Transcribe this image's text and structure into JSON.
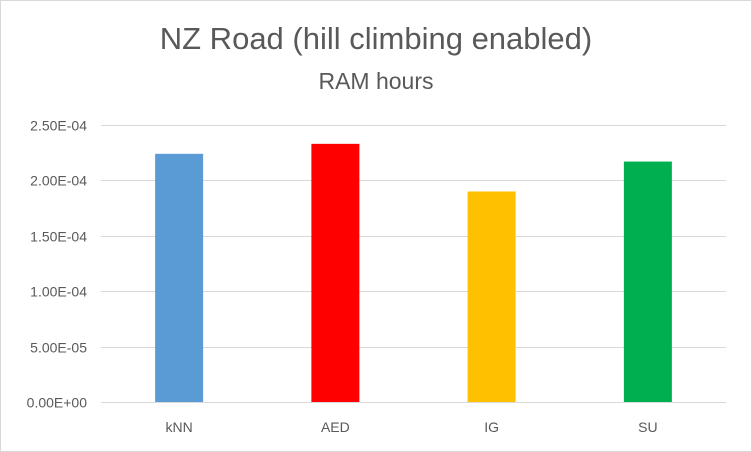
{
  "chart_data": {
    "type": "bar",
    "title": "NZ Road (hill climbing enabled)",
    "subtitle": "RAM hours",
    "xlabel": "",
    "ylabel": "",
    "categories": [
      "kNN",
      "AED",
      "IG",
      "SU"
    ],
    "values": [
      0.000224,
      0.000233,
      0.00019,
      0.000217
    ],
    "bar_colors": [
      "#5b9bd5",
      "#ff0000",
      "#ffc000",
      "#00b050"
    ],
    "ylim": [
      0,
      0.00025
    ],
    "yticks": [
      {
        "value": 0,
        "label": "0.00E+00"
      },
      {
        "value": 5e-05,
        "label": "5.00E-05"
      },
      {
        "value": 0.0001,
        "label": "1.00E-04"
      },
      {
        "value": 0.00015,
        "label": "1.50E-04"
      },
      {
        "value": 0.0002,
        "label": "2.00E-04"
      },
      {
        "value": 0.00025,
        "label": "2.50E-04"
      }
    ],
    "grid": true,
    "legend": "none",
    "colors": {
      "gridline": "#d9d9d9",
      "axis": "#d9d9d9",
      "text": "#595959"
    }
  }
}
